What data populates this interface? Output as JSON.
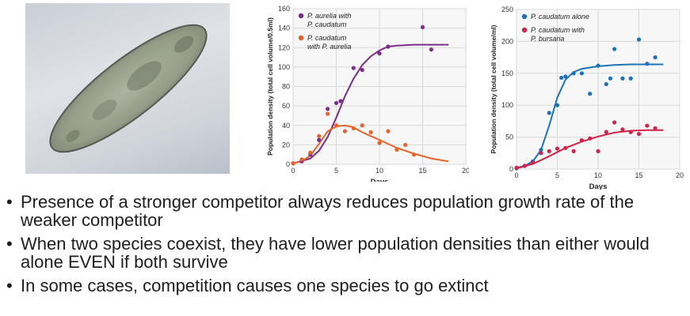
{
  "photo": {
    "subject": "paramecium-micrograph"
  },
  "bullets": [
    "Presence of a stronger competitor always reduces population growth rate of the weaker competitor",
    "When two species coexist, they have lower population densities than either would alone EVEN if both survive",
    "In some cases, competition causes one species to go extinct"
  ],
  "colors": {
    "purple": "#7a2e8c",
    "orange": "#e8622c",
    "blue": "#1d72b8",
    "red": "#d2234a",
    "grid": "#d9d9d9",
    "plot_bg": "#f7f7f7"
  },
  "chart_data": [
    {
      "type": "scatter",
      "xlabel": "Days",
      "ylabel": "Population density (total cell volume/0.5ml)",
      "xlim": [
        0,
        20
      ],
      "ylim": [
        0,
        160
      ],
      "xticks": [
        0,
        5,
        10,
        15,
        20
      ],
      "yticks": [
        0,
        20,
        40,
        60,
        80,
        100,
        120,
        140,
        160
      ],
      "legend_position": "top-left",
      "series": [
        {
          "name": "P. aurelia with P. caudatum",
          "legend_lines": [
            "P. aurelia with",
            "P. caudatum"
          ],
          "color": "#7a2e8c",
          "x": [
            0,
            1,
            2,
            3,
            4,
            5,
            5.5,
            7,
            8,
            10,
            11,
            15,
            16
          ],
          "y": [
            1,
            3,
            10,
            25,
            57,
            63,
            65,
            99,
            97,
            114,
            121,
            141,
            118
          ],
          "curve_x": [
            0,
            2,
            3,
            4,
            5,
            6,
            7,
            8,
            9,
            10,
            11,
            12,
            14,
            16,
            18
          ],
          "curve_y": [
            1,
            6,
            14,
            28,
            48,
            70,
            88,
            102,
            111,
            117,
            121,
            122,
            123,
            123,
            123
          ]
        },
        {
          "name": "P. caudatum with P. aurelia",
          "legend_lines": [
            "P. caudatum",
            "with P. aurelia"
          ],
          "color": "#e8622c",
          "x": [
            0,
            1,
            2,
            3,
            4,
            5,
            6,
            7,
            8,
            9,
            10,
            11,
            12,
            13,
            14
          ],
          "y": [
            1,
            5,
            12,
            29,
            52,
            40,
            34,
            37,
            40,
            33,
            22,
            34,
            15,
            20,
            10
          ],
          "curve_x": [
            0,
            1,
            2,
            3,
            4,
            5,
            6,
            7,
            8,
            10,
            12,
            14,
            16,
            18
          ],
          "curve_y": [
            1,
            3,
            9,
            21,
            34,
            39,
            40,
            38,
            33,
            25,
            17,
            11,
            6,
            3
          ]
        }
      ]
    },
    {
      "type": "scatter",
      "xlabel": "Days",
      "ylabel": "Population density (total cell volume/ml)",
      "xlim": [
        0,
        20
      ],
      "ylim": [
        0,
        250
      ],
      "xticks": [
        0,
        5,
        10,
        15,
        20
      ],
      "yticks": [
        0,
        50,
        100,
        150,
        200,
        250
      ],
      "legend_position": "top-left",
      "series": [
        {
          "name": "P. caudatum alone",
          "legend_lines": [
            "P. caudatum alone"
          ],
          "color": "#1d72b8",
          "x": [
            0,
            1,
            2,
            3,
            4,
            5,
            5.5,
            6,
            7,
            8,
            9,
            10,
            11,
            11.5,
            12,
            13,
            14,
            15,
            16,
            17
          ],
          "y": [
            1,
            5,
            12,
            30,
            88,
            100,
            143,
            145,
            150,
            150,
            118,
            162,
            133,
            142,
            188,
            142,
            142,
            203,
            165,
            175
          ],
          "curve_x": [
            0,
            1,
            2,
            3,
            4,
            5,
            6,
            7,
            8,
            10,
            12,
            14,
            16,
            18
          ],
          "curve_y": [
            2,
            5,
            12,
            30,
            68,
            112,
            140,
            152,
            157,
            161,
            163,
            164,
            164,
            164
          ]
        },
        {
          "name": "P. caudatum with P. bursaria",
          "legend_lines": [
            "P. caudatum with",
            "P. bursaria"
          ],
          "color": "#d2234a",
          "x": [
            0,
            1,
            2,
            3,
            4,
            5,
            6,
            7,
            8,
            9,
            10,
            11,
            12,
            13,
            14,
            15,
            16,
            17
          ],
          "y": [
            2,
            5,
            10,
            25,
            28,
            32,
            33,
            28,
            45,
            48,
            28,
            58,
            73,
            62,
            58,
            55,
            68,
            64
          ],
          "curve_x": [
            0,
            2,
            4,
            6,
            8,
            10,
            12,
            14,
            16,
            18
          ],
          "curve_y": [
            1,
            8,
            20,
            33,
            43,
            51,
            57,
            60,
            61,
            61
          ]
        }
      ]
    }
  ]
}
